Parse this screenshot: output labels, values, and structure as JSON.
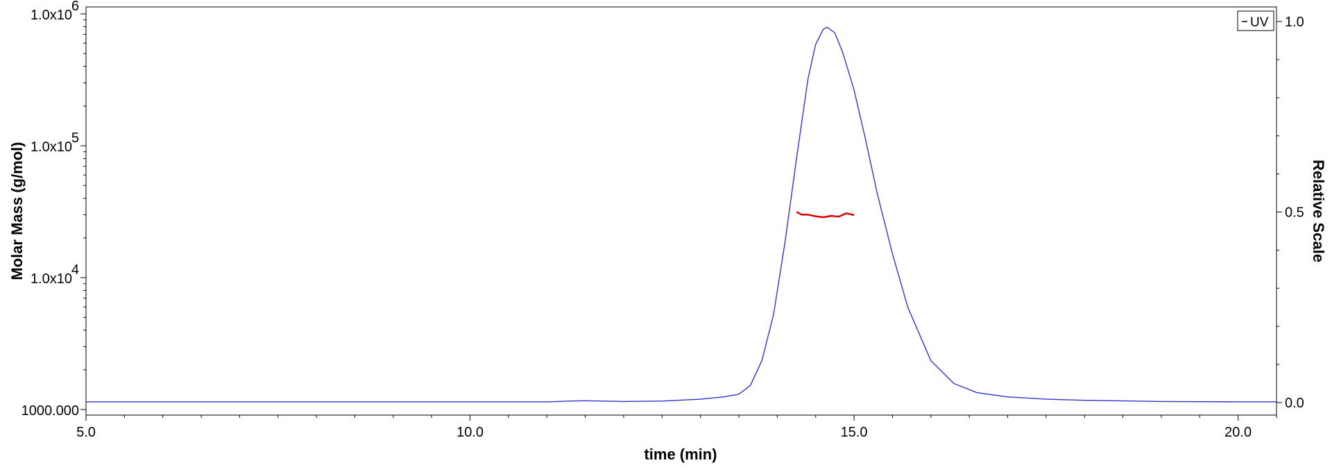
{
  "chart_data": {
    "type": "line",
    "title": "",
    "xlabel": "time (min)",
    "ylabel_left": "Molar Mass (g/mol)",
    "ylabel_right": "Relative Scale",
    "xlim": [
      5.0,
      20.5
    ],
    "ylim_left": [
      1000,
      1000000
    ],
    "ylim_right": [
      0,
      1.03
    ],
    "left_axis_scale": "log",
    "x_ticks": [
      "5.0",
      "10.0",
      "15.0",
      "20.0"
    ],
    "left_ticks": [
      {
        "value": 1000,
        "base": "1000.000",
        "exp": ""
      },
      {
        "value": 10000,
        "base": "1.0x10",
        "exp": "4"
      },
      {
        "value": 100000,
        "base": "1.0x10",
        "exp": "5"
      },
      {
        "value": 1000000,
        "base": "1.0x10",
        "exp": "6"
      }
    ],
    "right_ticks": [
      "0.0",
      "0.5",
      "1.0"
    ],
    "grid": false,
    "legend": {
      "position": "top-right",
      "entries": [
        "UV"
      ]
    },
    "colors": {
      "uv": "#3333cc",
      "molar_mass": "#dd0000",
      "axis": "#000000"
    },
    "series": [
      {
        "name": "UV",
        "axis": "right",
        "x": [
          5.0,
          6.0,
          8.0,
          10.0,
          11.0,
          11.3,
          11.5,
          11.7,
          12.0,
          12.5,
          13.0,
          13.3,
          13.5,
          13.65,
          13.8,
          13.95,
          14.1,
          14.25,
          14.4,
          14.5,
          14.6,
          14.65,
          14.75,
          14.85,
          15.0,
          15.15,
          15.3,
          15.5,
          15.7,
          16.0,
          16.3,
          16.6,
          17.0,
          17.5,
          18.0,
          19.0,
          20.0,
          20.5
        ],
        "y": [
          0.002,
          0.002,
          0.002,
          0.002,
          0.002,
          0.004,
          0.005,
          0.004,
          0.003,
          0.004,
          0.009,
          0.015,
          0.022,
          0.045,
          0.11,
          0.23,
          0.42,
          0.64,
          0.85,
          0.94,
          0.98,
          0.985,
          0.97,
          0.92,
          0.82,
          0.69,
          0.55,
          0.39,
          0.25,
          0.11,
          0.05,
          0.026,
          0.015,
          0.009,
          0.006,
          0.003,
          0.002,
          0.002
        ]
      },
      {
        "name": "Molar Mass",
        "axis": "left",
        "x": [
          14.25,
          14.32,
          14.4,
          14.5,
          14.6,
          14.7,
          14.8,
          14.9,
          15.0
        ],
        "y": [
          31500,
          30000,
          30000,
          29200,
          28700,
          29400,
          29000,
          30800,
          29800
        ]
      }
    ]
  }
}
